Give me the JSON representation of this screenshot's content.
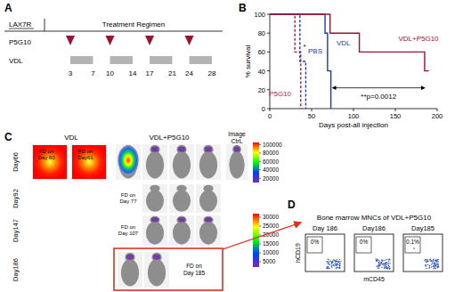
{
  "panels": {
    "A": {
      "label": "A",
      "header": "Treatment Regimen",
      "model": "LAX7R",
      "rows": [
        "P5G10",
        "VDL"
      ],
      "day_ticks": [
        3,
        7,
        10,
        14,
        17,
        21,
        24,
        28
      ],
      "p5g10_days": [
        3,
        10,
        17,
        24
      ],
      "vdl_courses": [
        [
          3,
          7
        ],
        [
          10,
          14
        ],
        [
          17,
          21
        ],
        [
          24,
          28
        ]
      ]
    },
    "B": {
      "label": "B"
    },
    "C": {
      "label": "C",
      "columns": [
        "VDL",
        "VDL+P5G10",
        "Image CtrL"
      ],
      "rows": [
        "Day66",
        "Day92",
        "Day147",
        "Day186"
      ],
      "fd_labels": [
        "FD on Day 60",
        "FD on Day61",
        "FD on Day 77",
        "FD on Day 107",
        "FD on Day 185"
      ],
      "colorbars": [
        {
          "range": [
            10000,
            105000
          ],
          "ticks": [
            20000,
            40000,
            60000,
            80000,
            100000
          ]
        },
        {
          "range": [
            2000,
            32000
          ],
          "ticks": [
            5000,
            10000,
            15000,
            20000,
            25000,
            30000
          ]
        }
      ]
    },
    "D": {
      "label": "D",
      "title": "Bone marrow MNCs of VDL+P5G10",
      "x_label": "mCD45",
      "y_label": "hCD19",
      "plots": [
        {
          "day": "Day 186",
          "percent": 0,
          "percent_label": "0%"
        },
        {
          "day": "Day186",
          "percent": 0,
          "percent_label": "0%"
        },
        {
          "day": "Day185",
          "percent": 0.1,
          "percent_label": "0.1%"
        }
      ]
    }
  },
  "chart_data": {
    "type": "line",
    "x_label": "Days post-all injection",
    "y_label": "% survival",
    "xlim": [
      0,
      200
    ],
    "ylim": [
      0,
      100
    ],
    "xticks": [
      0,
      50,
      100,
      150,
      200
    ],
    "yticks": [
      0,
      20,
      40,
      60,
      80,
      100
    ],
    "grid": false,
    "series": [
      {
        "name": "P5G10",
        "color": "#c0143c",
        "line_style": "dashed",
        "x": [
          0,
          30,
          30,
          37,
          37
        ],
        "values": [
          100,
          100,
          60,
          60,
          0
        ]
      },
      {
        "name": "PBS",
        "color": "#1f3a9e",
        "line_style": "dashed",
        "x": [
          0,
          36,
          36,
          43,
          43
        ],
        "values": [
          100,
          100,
          50,
          50,
          0
        ]
      },
      {
        "name": "VDL",
        "color": "#1f3a9e",
        "line_style": "solid",
        "x": [
          0,
          66,
          66,
          69,
          69,
          73,
          73
        ],
        "values": [
          100,
          100,
          80,
          80,
          40,
          40,
          0
        ]
      },
      {
        "name": "VDL+P5G10",
        "color": "#a01030",
        "line_style": "solid",
        "x": [
          0,
          72,
          72,
          107,
          107,
          185,
          185,
          190
        ],
        "values": [
          100,
          100,
          80,
          80,
          60,
          60,
          40,
          40
        ]
      }
    ],
    "annotations": [
      {
        "text": "*",
        "x": 41.5,
        "y": 63
      },
      {
        "text": "**p=0.0012",
        "x": 130,
        "y": 10,
        "arrow": [
          75,
          185
        ],
        "arrow_y": 22
      }
    ]
  }
}
